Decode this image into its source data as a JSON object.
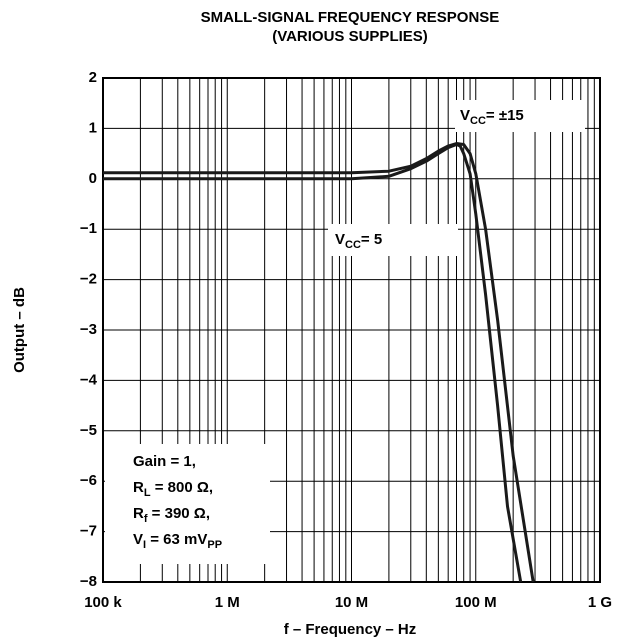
{
  "chart_data": {
    "type": "line",
    "title": [
      "SMALL-SIGNAL FREQUENCY RESPONSE",
      "(VARIOUS SUPPLIES)"
    ],
    "x_label": "f – Frequency – Hz",
    "y_label": "Output – dB",
    "xscale": "log",
    "xlim": [
      100000,
      1000000000
    ],
    "xticks": [
      {
        "value": 100000,
        "label": "100 k"
      },
      {
        "value": 1000000,
        "label": "1 M"
      },
      {
        "value": 10000000,
        "label": "10 M"
      },
      {
        "value": 100000000,
        "label": "100 M"
      },
      {
        "value": 1000000000,
        "label": "1 G"
      }
    ],
    "minor_grid": true,
    "ylim": [
      -8,
      2
    ],
    "yticks": [
      2,
      1,
      0,
      {
        "value": -1,
        "label": "−1"
      },
      {
        "value": -2,
        "label": "−2"
      },
      {
        "value": -3,
        "label": "−3"
      },
      {
        "value": -4,
        "label": "−4"
      },
      {
        "value": -5,
        "label": "−5"
      },
      {
        "value": -6,
        "label": "−6"
      },
      {
        "value": -7,
        "label": "−7"
      },
      {
        "value": -8,
        "label": "−8"
      }
    ],
    "grid": true,
    "series": [
      {
        "label": [
          {
            "t": "V"
          },
          {
            "t": "CC",
            "sub": true
          },
          {
            "t": "= ±15"
          }
        ],
        "color": "#1a1a1a",
        "x": [
          100000,
          1000000,
          10000000,
          20000000,
          30000000,
          40000000,
          50000000,
          60000000,
          70000000,
          80000000,
          90000000,
          100000000,
          120000000,
          150000000,
          200000000,
          290000000
        ],
        "values": [
          0.12,
          0.12,
          0.12,
          0.15,
          0.25,
          0.4,
          0.55,
          0.65,
          0.7,
          0.68,
          0.5,
          0.1,
          -1.0,
          -2.8,
          -5.5,
          -8
        ]
      },
      {
        "label": [
          {
            "t": "V"
          },
          {
            "t": "CC",
            "sub": true
          },
          {
            "t": "= 5"
          }
        ],
        "color": "#1a1a1a",
        "x": [
          100000,
          1000000,
          10000000,
          20000000,
          30000000,
          40000000,
          50000000,
          60000000,
          70000000,
          75000000,
          80000000,
          90000000,
          100000000,
          120000000,
          150000000,
          180000000,
          230000000
        ],
        "values": [
          0,
          0,
          0,
          0.05,
          0.2,
          0.35,
          0.5,
          0.62,
          0.68,
          0.65,
          0.5,
          0.1,
          -0.7,
          -2.3,
          -4.5,
          -6.5,
          -8
        ]
      }
    ],
    "note": [
      [
        {
          "t": "Gain = 1,"
        }
      ],
      [
        {
          "t": "R"
        },
        {
          "t": "L",
          "sub": true
        },
        {
          "t": " = 800 Ω,"
        }
      ],
      [
        {
          "t": "R"
        },
        {
          "t": "f",
          "sub": true
        },
        {
          "t": " = 390 Ω,"
        }
      ],
      [
        {
          "t": "V"
        },
        {
          "t": "I",
          "sub": true
        },
        {
          "t": " = 63 mV"
        },
        {
          "t": "PP",
          "sub": true
        }
      ]
    ]
  }
}
